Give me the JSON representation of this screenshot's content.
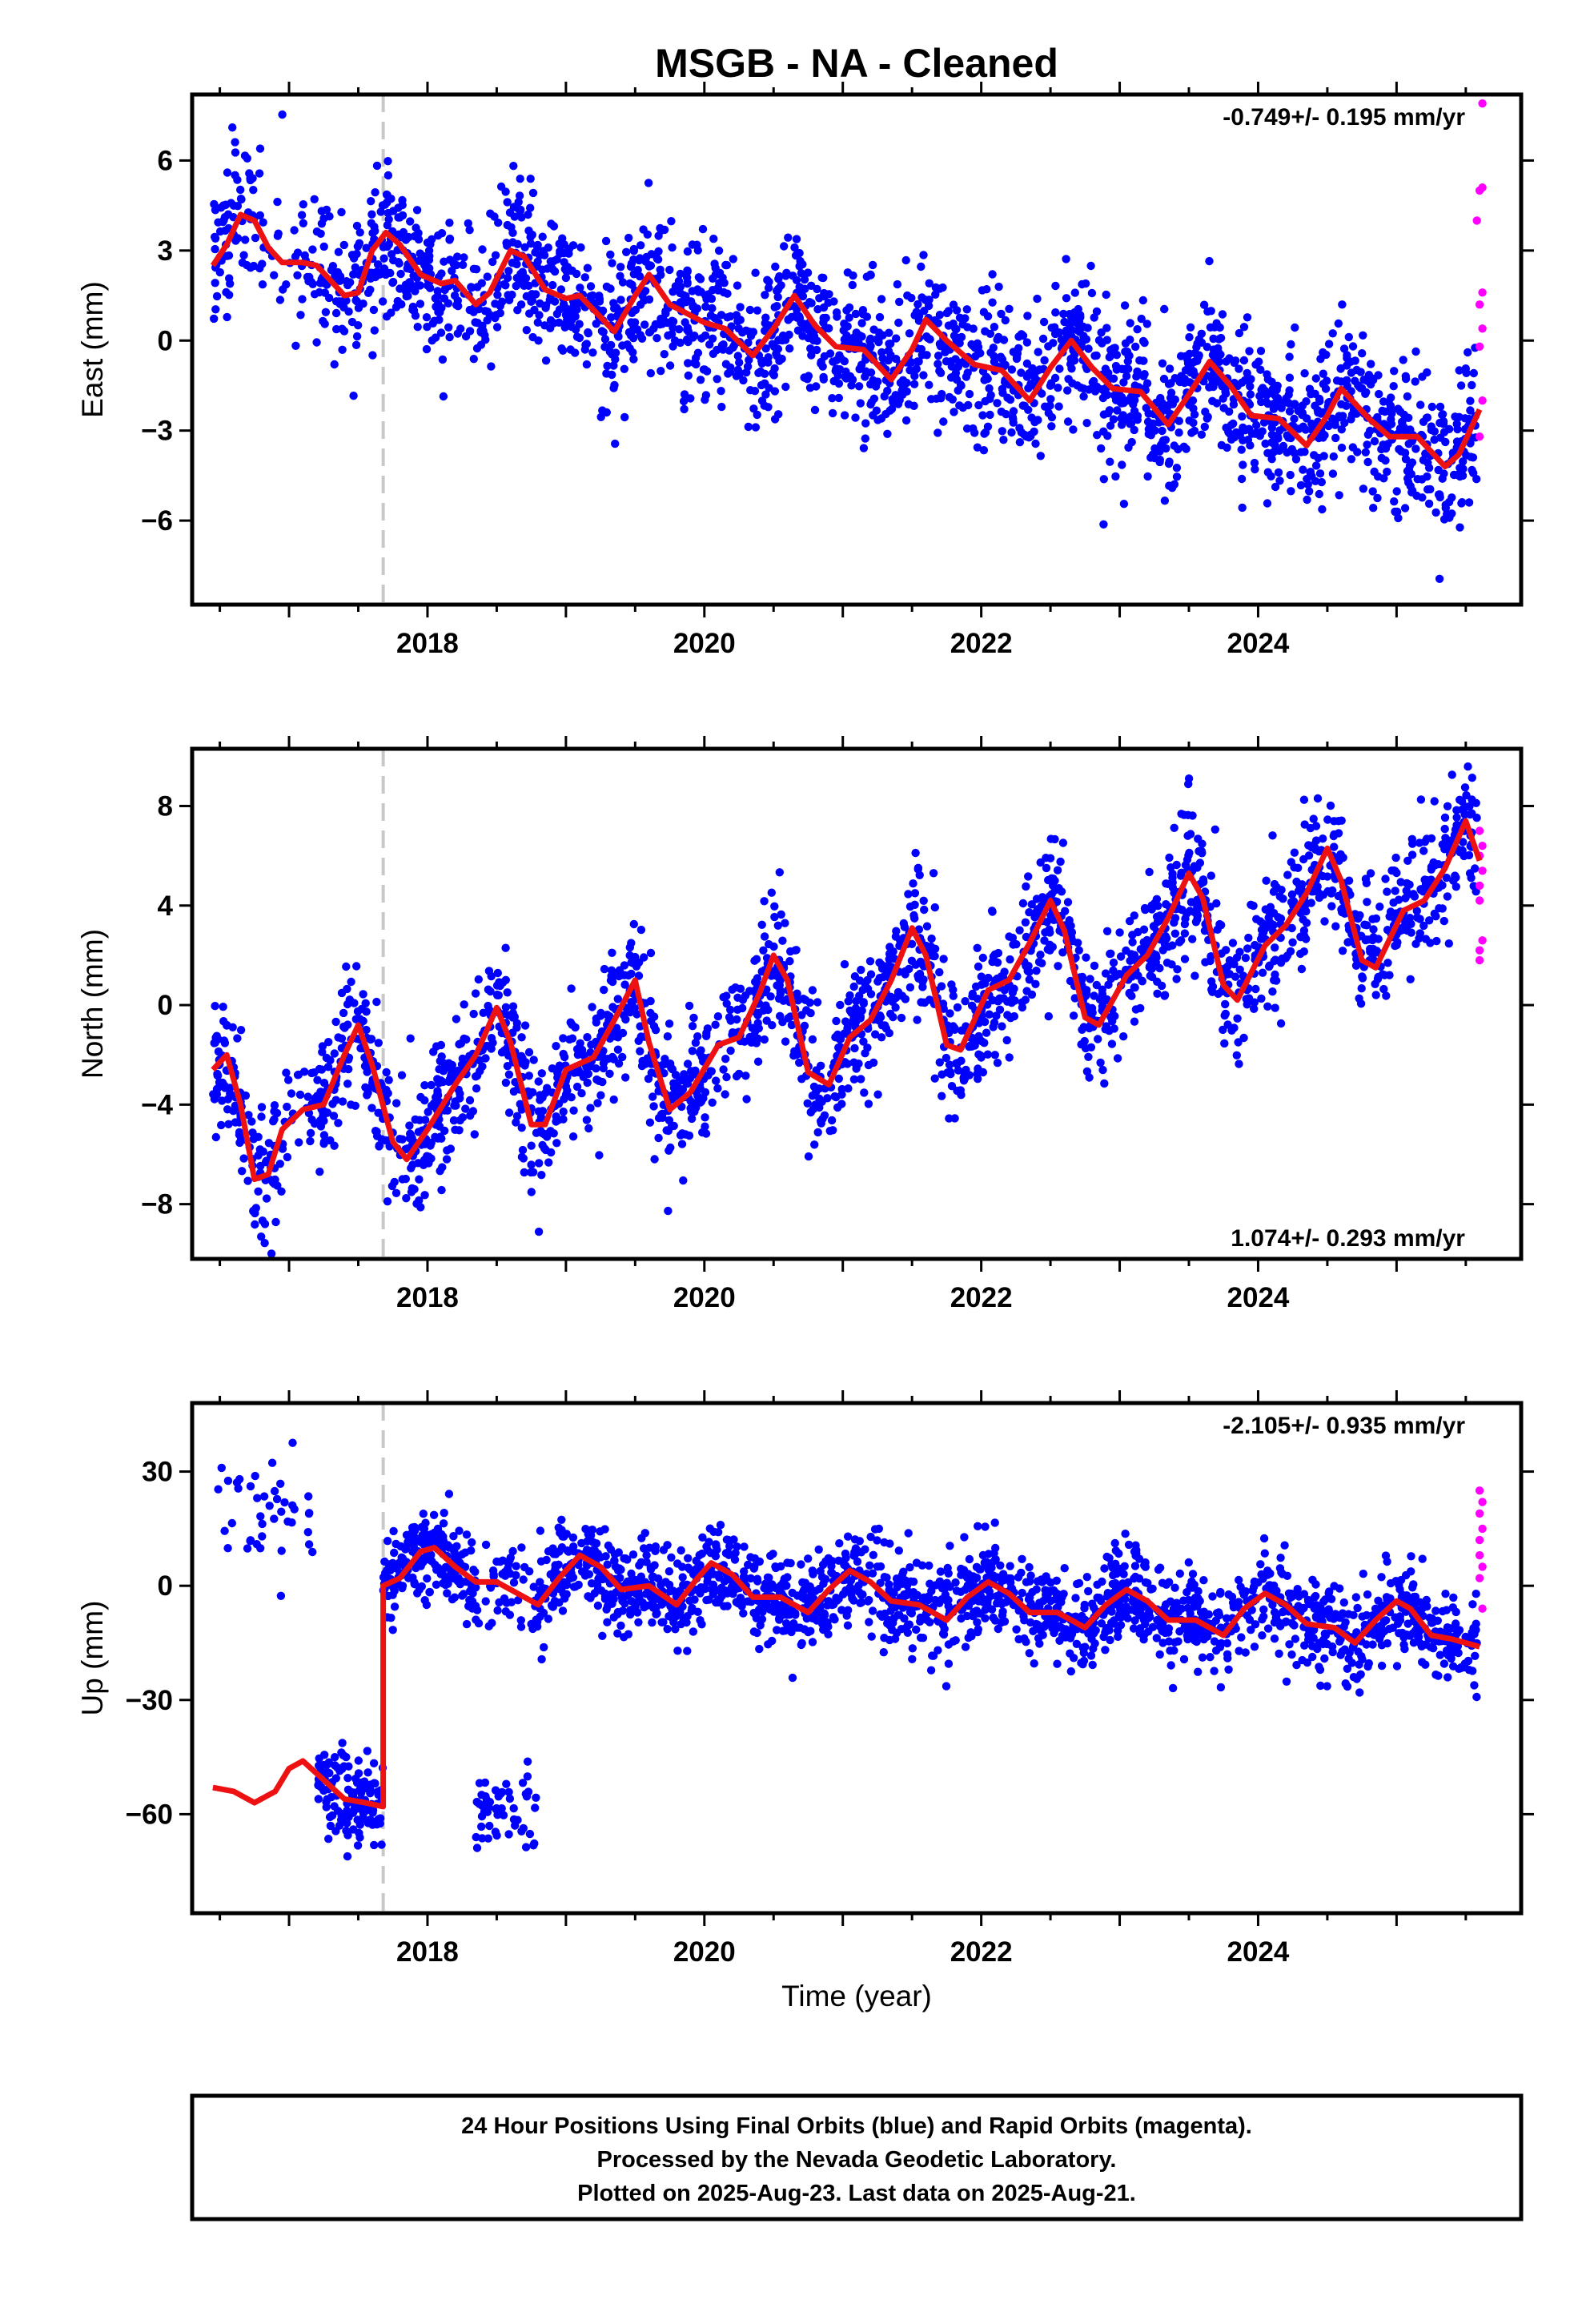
{
  "title": "MSGB  - NA - Cleaned",
  "xlabel": "Time (year)",
  "footer": [
    "24 Hour Positions Using Final Orbits (blue) and Rapid Orbits (magenta).",
    "Processed by the Nevada Geodetic Laboratory.",
    "Plotted on 2025-Aug-23. Last data on 2025-Aug-21."
  ],
  "colors": {
    "final": "#0000ff",
    "rapid": "#ff00ff",
    "model": "#ee1111",
    "event": "#c8c8c8"
  },
  "chart_data": [
    {
      "type": "scatter",
      "ylabel": "East (mm)",
      "rate": "-0.749+/- 0.195 mm/yr",
      "rate_position": "top-right",
      "xlim": [
        2016.3,
        2025.9
      ],
      "ylim": [
        -8.8,
        8.2
      ],
      "xticks": [
        2018,
        2020,
        2022,
        2024
      ],
      "yticks": [
        6,
        3,
        0,
        -3,
        -6
      ],
      "event_x": 2017.68,
      "model": [
        [
          2016.45,
          2.5
        ],
        [
          2016.55,
          3.2
        ],
        [
          2016.65,
          4.2
        ],
        [
          2016.75,
          4.0
        ],
        [
          2016.85,
          3.1
        ],
        [
          2016.95,
          2.6
        ],
        [
          2017.1,
          2.6
        ],
        [
          2017.2,
          2.5
        ],
        [
          2017.3,
          2.0
        ],
        [
          2017.4,
          1.5
        ],
        [
          2017.5,
          1.6
        ],
        [
          2017.6,
          3.0
        ],
        [
          2017.7,
          3.6
        ],
        [
          2017.8,
          3.2
        ],
        [
          2017.95,
          2.2
        ],
        [
          2018.1,
          1.9
        ],
        [
          2018.2,
          2.0
        ],
        [
          2018.35,
          1.2
        ],
        [
          2018.45,
          1.6
        ],
        [
          2018.6,
          3.0
        ],
        [
          2018.7,
          2.8
        ],
        [
          2018.85,
          1.7
        ],
        [
          2019.0,
          1.4
        ],
        [
          2019.1,
          1.5
        ],
        [
          2019.35,
          0.3
        ],
        [
          2019.5,
          1.5
        ],
        [
          2019.6,
          2.2
        ],
        [
          2019.75,
          1.2
        ],
        [
          2020.0,
          0.6
        ],
        [
          2020.15,
          0.4
        ],
        [
          2020.35,
          -0.5
        ],
        [
          2020.5,
          0.4
        ],
        [
          2020.65,
          1.5
        ],
        [
          2020.8,
          0.5
        ],
        [
          2020.95,
          -0.2
        ],
        [
          2021.15,
          -0.3
        ],
        [
          2021.35,
          -1.3
        ],
        [
          2021.5,
          -0.3
        ],
        [
          2021.6,
          0.7
        ],
        [
          2021.75,
          0.0
        ],
        [
          2021.95,
          -0.8
        ],
        [
          2022.15,
          -1.0
        ],
        [
          2022.35,
          -2.0
        ],
        [
          2022.5,
          -0.9
        ],
        [
          2022.65,
          0.0
        ],
        [
          2022.8,
          -0.9
        ],
        [
          2022.95,
          -1.6
        ],
        [
          2023.15,
          -1.7
        ],
        [
          2023.35,
          -2.8
        ],
        [
          2023.5,
          -1.8
        ],
        [
          2023.65,
          -0.7
        ],
        [
          2023.8,
          -1.5
        ],
        [
          2023.95,
          -2.5
        ],
        [
          2024.15,
          -2.6
        ],
        [
          2024.35,
          -3.5
        ],
        [
          2024.5,
          -2.5
        ],
        [
          2024.6,
          -1.6
        ],
        [
          2024.8,
          -2.6
        ],
        [
          2024.95,
          -3.2
        ],
        [
          2025.15,
          -3.2
        ],
        [
          2025.35,
          -4.2
        ],
        [
          2025.45,
          -3.8
        ],
        [
          2025.6,
          -2.3
        ]
      ],
      "rapid": [
        [
          2025.62,
          7.9
        ],
        [
          2025.62,
          5.1
        ],
        [
          2025.6,
          5.0
        ],
        [
          2025.58,
          4.0
        ],
        [
          2025.62,
          1.6
        ],
        [
          2025.6,
          1.2
        ],
        [
          2025.62,
          0.4
        ],
        [
          2025.6,
          -0.2
        ],
        [
          2025.62,
          -2.0
        ],
        [
          2025.6,
          -3.2
        ]
      ]
    },
    {
      "type": "scatter",
      "ylabel": "North (mm)",
      "rate": "1.074+/- 0.293 mm/yr",
      "rate_position": "bottom-right",
      "xlim": [
        2016.3,
        2025.9
      ],
      "ylim": [
        -10.2,
        10.3
      ],
      "xticks": [
        2018,
        2020,
        2022,
        2024
      ],
      "yticks": [
        8,
        4,
        0,
        -4,
        -8
      ],
      "event_x": 2017.68,
      "model": [
        [
          2016.45,
          -2.6
        ],
        [
          2016.55,
          -2.0
        ],
        [
          2016.65,
          -4.0
        ],
        [
          2016.75,
          -7.0
        ],
        [
          2016.85,
          -6.8
        ],
        [
          2016.95,
          -5.0
        ],
        [
          2017.1,
          -4.2
        ],
        [
          2017.25,
          -4.0
        ],
        [
          2017.4,
          -2.0
        ],
        [
          2017.5,
          -0.8
        ],
        [
          2017.6,
          -2.4
        ],
        [
          2017.75,
          -5.5
        ],
        [
          2017.85,
          -6.2
        ],
        [
          2018.0,
          -5.0
        ],
        [
          2018.2,
          -3.2
        ],
        [
          2018.35,
          -2.0
        ],
        [
          2018.5,
          -0.1
        ],
        [
          2018.6,
          -1.5
        ],
        [
          2018.75,
          -4.8
        ],
        [
          2018.85,
          -4.8
        ],
        [
          2019.0,
          -2.6
        ],
        [
          2019.2,
          -2.1
        ],
        [
          2019.35,
          -0.6
        ],
        [
          2019.5,
          1.0
        ],
        [
          2019.6,
          -1.5
        ],
        [
          2019.75,
          -4.2
        ],
        [
          2019.9,
          -3.5
        ],
        [
          2020.1,
          -1.6
        ],
        [
          2020.25,
          -1.3
        ],
        [
          2020.4,
          0.5
        ],
        [
          2020.5,
          2.0
        ],
        [
          2020.6,
          1.0
        ],
        [
          2020.75,
          -2.7
        ],
        [
          2020.9,
          -3.2
        ],
        [
          2021.05,
          -1.3
        ],
        [
          2021.2,
          -0.6
        ],
        [
          2021.35,
          1.0
        ],
        [
          2021.5,
          3.1
        ],
        [
          2021.6,
          2.0
        ],
        [
          2021.75,
          -1.6
        ],
        [
          2021.85,
          -1.8
        ],
        [
          2022.05,
          0.6
        ],
        [
          2022.2,
          1.0
        ],
        [
          2022.35,
          2.5
        ],
        [
          2022.5,
          4.2
        ],
        [
          2022.6,
          3.0
        ],
        [
          2022.75,
          -0.5
        ],
        [
          2022.85,
          -0.8
        ],
        [
          2023.05,
          1.2
        ],
        [
          2023.2,
          2.0
        ],
        [
          2023.35,
          3.5
        ],
        [
          2023.5,
          5.3
        ],
        [
          2023.6,
          4.3
        ],
        [
          2023.75,
          0.8
        ],
        [
          2023.85,
          0.2
        ],
        [
          2024.05,
          2.4
        ],
        [
          2024.2,
          3.2
        ],
        [
          2024.35,
          4.5
        ],
        [
          2024.5,
          6.3
        ],
        [
          2024.6,
          5.0
        ],
        [
          2024.75,
          1.8
        ],
        [
          2024.85,
          1.5
        ],
        [
          2025.05,
          3.8
        ],
        [
          2025.2,
          4.2
        ],
        [
          2025.35,
          5.5
        ],
        [
          2025.5,
          7.4
        ],
        [
          2025.6,
          5.8
        ]
      ],
      "rapid": [
        [
          2025.6,
          7.0
        ],
        [
          2025.62,
          6.4
        ],
        [
          2025.6,
          6.0
        ],
        [
          2025.62,
          5.4
        ],
        [
          2025.6,
          4.8
        ],
        [
          2025.6,
          4.2
        ],
        [
          2025.62,
          2.6
        ],
        [
          2025.6,
          2.2
        ],
        [
          2025.6,
          1.8
        ]
      ]
    },
    {
      "type": "scatter",
      "ylabel": "Up (mm)",
      "rate": "-2.105+/- 0.935 mm/yr",
      "rate_position": "top-right",
      "xlim": [
        2016.3,
        2025.9
      ],
      "ylim": [
        -86,
        48
      ],
      "xticks": [
        2018,
        2020,
        2022,
        2024
      ],
      "yticks": [
        30,
        0,
        -30,
        -60
      ],
      "event_x": 2017.68,
      "model": [
        [
          2016.45,
          -53
        ],
        [
          2016.6,
          -54
        ],
        [
          2016.75,
          -57
        ],
        [
          2016.9,
          -54
        ],
        [
          2017.0,
          -48
        ],
        [
          2017.1,
          -46
        ],
        [
          2017.25,
          -51
        ],
        [
          2017.4,
          -56
        ],
        [
          2017.55,
          -57
        ],
        [
          2017.68,
          -58
        ],
        [
          2017.68,
          0
        ],
        [
          2017.8,
          2
        ],
        [
          2017.95,
          9
        ],
        [
          2018.05,
          10
        ],
        [
          2018.2,
          5
        ],
        [
          2018.35,
          1
        ],
        [
          2018.5,
          1
        ],
        [
          2018.65,
          -2
        ],
        [
          2018.8,
          -5
        ],
        [
          2018.95,
          2
        ],
        [
          2019.1,
          8
        ],
        [
          2019.25,
          5
        ],
        [
          2019.4,
          -1
        ],
        [
          2019.6,
          0
        ],
        [
          2019.8,
          -5
        ],
        [
          2019.95,
          2
        ],
        [
          2020.05,
          6
        ],
        [
          2020.2,
          3
        ],
        [
          2020.35,
          -3
        ],
        [
          2020.55,
          -3
        ],
        [
          2020.75,
          -7
        ],
        [
          2020.9,
          -1
        ],
        [
          2021.05,
          4
        ],
        [
          2021.2,
          1
        ],
        [
          2021.35,
          -4
        ],
        [
          2021.55,
          -5
        ],
        [
          2021.75,
          -9
        ],
        [
          2021.9,
          -3
        ],
        [
          2022.05,
          1
        ],
        [
          2022.2,
          -2
        ],
        [
          2022.35,
          -7
        ],
        [
          2022.55,
          -7
        ],
        [
          2022.75,
          -11
        ],
        [
          2022.9,
          -5
        ],
        [
          2023.05,
          -1
        ],
        [
          2023.2,
          -4
        ],
        [
          2023.35,
          -9
        ],
        [
          2023.55,
          -9
        ],
        [
          2023.75,
          -13
        ],
        [
          2023.9,
          -6
        ],
        [
          2024.05,
          -2
        ],
        [
          2024.2,
          -5
        ],
        [
          2024.35,
          -10
        ],
        [
          2024.55,
          -11
        ],
        [
          2024.7,
          -15
        ],
        [
          2024.85,
          -9
        ],
        [
          2025.0,
          -4
        ],
        [
          2025.1,
          -6
        ],
        [
          2025.25,
          -13
        ],
        [
          2025.4,
          -14
        ],
        [
          2025.6,
          -16
        ]
      ],
      "rapid": [
        [
          2025.6,
          25
        ],
        [
          2025.62,
          22
        ],
        [
          2025.6,
          19
        ],
        [
          2025.62,
          15
        ],
        [
          2025.6,
          12
        ],
        [
          2025.6,
          8
        ],
        [
          2025.62,
          5
        ],
        [
          2025.6,
          2
        ],
        [
          2025.62,
          -6
        ]
      ]
    }
  ]
}
